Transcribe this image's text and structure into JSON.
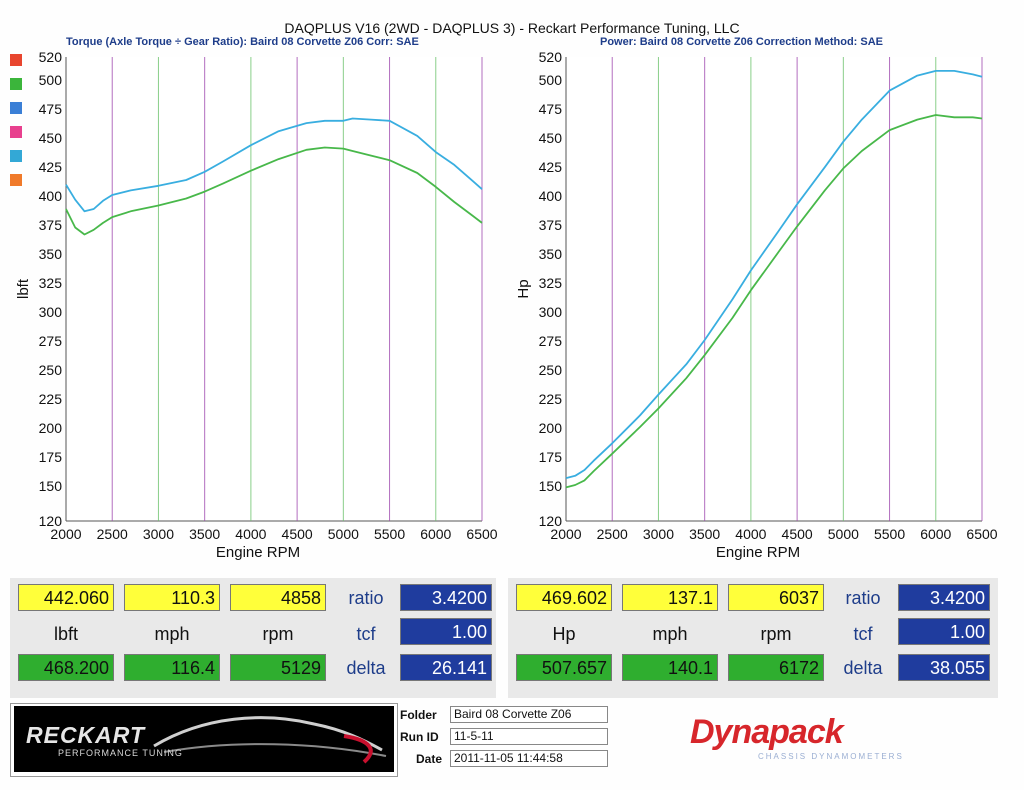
{
  "header": {
    "title": "DAQPLUS V16 (2WD - DAQPLUS 3) - Reckart Performance Tuning, LLC",
    "left_subtitle": "Torque (Axle Torque ÷ Gear Ratio): Baird 08 Corvette Z06     Corr: SAE",
    "right_subtitle": "Power: Baird 08 Corvette Z06     Correction Method: SAE"
  },
  "legend_swatch_colors": [
    "#e8452e",
    "#3bb53b",
    "#3a7fd6",
    "#e8408e",
    "#33a8d6",
    "#f07a2a"
  ],
  "chart_data": [
    {
      "type": "line",
      "xlabel": "Engine RPM",
      "ylabel": "lbft",
      "xlim": [
        2000,
        6500
      ],
      "ylim": [
        120,
        520
      ],
      "x_ticks": [
        2000,
        2500,
        3000,
        3500,
        4000,
        4500,
        5000,
        5500,
        6000,
        6500
      ],
      "y_ticks": [
        120,
        150,
        175,
        200,
        225,
        250,
        275,
        300,
        325,
        350,
        375,
        400,
        425,
        450,
        475,
        500,
        520
      ],
      "grid": "vertical",
      "series": [
        {
          "color": "#39aee0",
          "x": [
            2000,
            2100,
            2200,
            2300,
            2400,
            2500,
            2700,
            3000,
            3300,
            3500,
            3700,
            4000,
            4300,
            4600,
            4800,
            5000,
            5100,
            5300,
            5500,
            5800,
            6000,
            6200,
            6400,
            6500
          ],
          "y": [
            410,
            397,
            387,
            389,
            396,
            401,
            405,
            409,
            414,
            421,
            430,
            444,
            456,
            463,
            465,
            465,
            467,
            466,
            465,
            452,
            438,
            427,
            413,
            406
          ]
        },
        {
          "color": "#48b84a",
          "x": [
            2000,
            2100,
            2200,
            2300,
            2400,
            2500,
            2700,
            3000,
            3300,
            3500,
            3700,
            4000,
            4300,
            4600,
            4800,
            5000,
            5100,
            5300,
            5500,
            5800,
            6000,
            6200,
            6400,
            6500
          ],
          "y": [
            389,
            373,
            367,
            371,
            377,
            382,
            387,
            392,
            398,
            404,
            411,
            422,
            432,
            440,
            442,
            441,
            439,
            435,
            431,
            420,
            408,
            395,
            383,
            377
          ]
        }
      ]
    },
    {
      "type": "line",
      "xlabel": "Engine RPM",
      "ylabel": "Hp",
      "xlim": [
        2000,
        6500
      ],
      "ylim": [
        120,
        520
      ],
      "x_ticks": [
        2000,
        2500,
        3000,
        3500,
        4000,
        4500,
        5000,
        5500,
        6000,
        6500
      ],
      "y_ticks": [
        120,
        150,
        175,
        200,
        225,
        250,
        275,
        300,
        325,
        350,
        375,
        400,
        425,
        450,
        475,
        500,
        520
      ],
      "grid": "vertical",
      "series": [
        {
          "color": "#39aee0",
          "x": [
            2000,
            2100,
            2200,
            2300,
            2500,
            2800,
            3000,
            3300,
            3500,
            3800,
            4000,
            4300,
            4500,
            4800,
            5000,
            5200,
            5500,
            5800,
            6000,
            6200,
            6400,
            6500
          ],
          "y": [
            157,
            159,
            164,
            172,
            187,
            211,
            229,
            255,
            276,
            311,
            336,
            370,
            393,
            425,
            447,
            466,
            491,
            504,
            508,
            508,
            505,
            503
          ]
        },
        {
          "color": "#48b84a",
          "x": [
            2000,
            2100,
            2200,
            2300,
            2500,
            2800,
            3000,
            3300,
            3500,
            3800,
            4000,
            4300,
            4500,
            4800,
            5000,
            5200,
            5500,
            5800,
            6000,
            6200,
            6400,
            6500
          ],
          "y": [
            149,
            151,
            155,
            163,
            178,
            201,
            217,
            243,
            263,
            295,
            319,
            352,
            374,
            405,
            424,
            439,
            457,
            466,
            470,
            468,
            468,
            467
          ]
        }
      ]
    }
  ],
  "left_panel": {
    "row1": {
      "lbft": "442.060",
      "mph": "110.3",
      "rpm": "4858",
      "ratio": "3.4200"
    },
    "labels": {
      "lbft": "lbft",
      "mph": "mph",
      "rpm": "rpm",
      "ratio": "ratio",
      "tcf": "tcf",
      "delta": "delta"
    },
    "tcf": "1.00",
    "row2": {
      "lbft": "468.200",
      "mph": "116.4",
      "rpm": "5129",
      "delta": "26.141"
    }
  },
  "right_panel": {
    "row1": {
      "hp": "469.602",
      "mph": "137.1",
      "rpm": "6037",
      "ratio": "3.4200"
    },
    "labels": {
      "hp": "Hp",
      "mph": "mph",
      "rpm": "rpm",
      "ratio": "ratio",
      "tcf": "tcf",
      "delta": "delta"
    },
    "tcf": "1.00",
    "row2": {
      "hp": "507.657",
      "mph": "140.1",
      "rpm": "6172",
      "delta": "38.055"
    }
  },
  "footer": {
    "logo_text": "RECKART",
    "logo_subtext": "PERFORMANCE TUNING",
    "folder_label": "Folder",
    "folder_value": "Baird 08 Corvette Z06",
    "runid_label": "Run ID",
    "runid_value": "11-5-11",
    "date_label": "Date",
    "date_value": "2011-11-05 11:44:58",
    "brand": "Dynapack",
    "brand_sub": "CHASSIS DYNAMOMETERS"
  }
}
